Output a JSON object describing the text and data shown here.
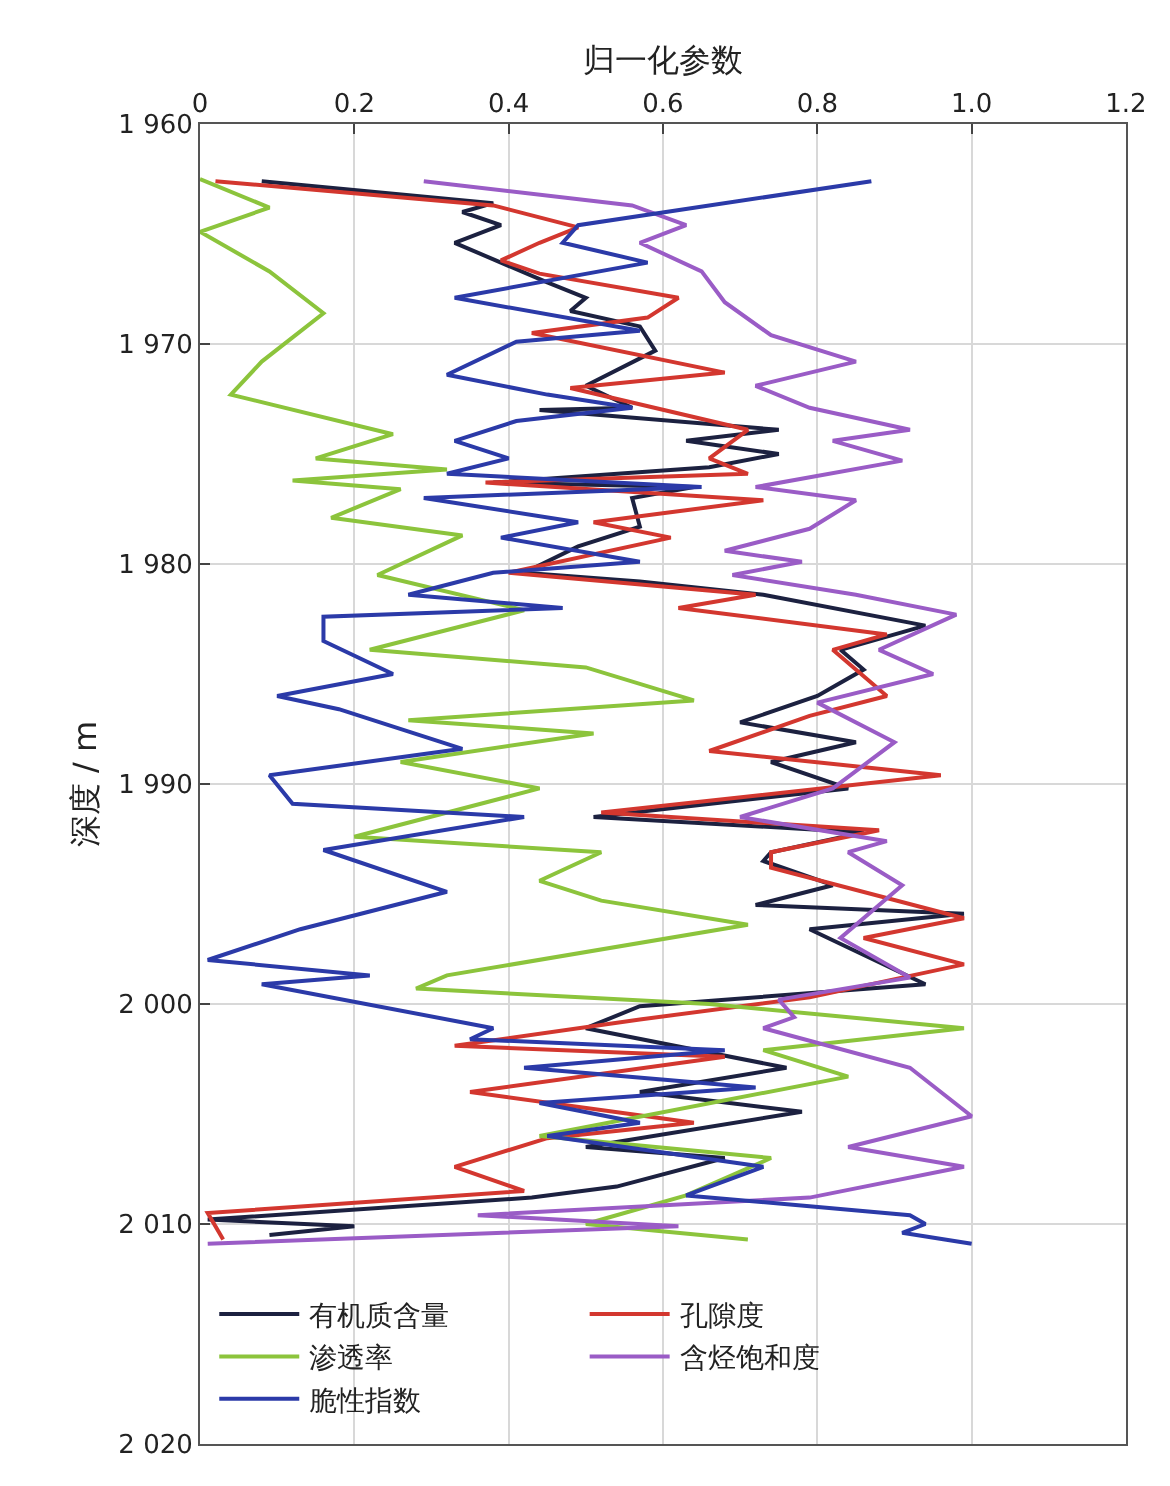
{
  "chart_data": {
    "type": "line",
    "orientation": "horizontal",
    "xlabel": "归一化参数",
    "ylabel": "深度 / m",
    "xlim": [
      0,
      1.2
    ],
    "xticks": [
      0,
      0.2,
      0.4,
      0.6,
      0.8,
      {
        "value": 1,
        "label": "1.0"
      },
      1.2
    ],
    "ylim": [
      2020,
      1960
    ],
    "yticks": [
      {
        "value": 1960,
        "label": "1 960"
      },
      {
        "value": 1970,
        "label": "1 970"
      },
      {
        "value": 1980,
        "label": "1 980"
      },
      {
        "value": 1990,
        "label": "1 990"
      },
      {
        "value": 2000,
        "label": "2 000"
      },
      {
        "value": 2010,
        "label": "2 010"
      },
      {
        "value": 2020,
        "label": "2 020"
      }
    ],
    "grid": true,
    "legend": "bottom left",
    "marker": "none",
    "line_style": "solid",
    "series": [
      {
        "name": "有机质含量",
        "color": "#1c2140",
        "x": [
          1962.6,
          1963.6,
          1964.0,
          1964.6,
          1965.4,
          1967.2,
          1967.9,
          1968.5,
          1969.2,
          1970.3,
          1971.9,
          1972.9,
          1973.0,
          1973.9,
          1974.4,
          1975.0,
          1975.6,
          1976.3,
          1976.5,
          1977.0,
          1978.3,
          1979.2,
          1980.4,
          1980.8,
          1981.4,
          1982.8,
          1983.9,
          1984.8,
          1986.0,
          1987.2,
          1988.1,
          1989.0,
          1990.2,
          1991.5,
          1992.2,
          1993.1,
          1993.5,
          1994.6,
          1995.5,
          1995.9,
          1996.6,
          1999.1,
          2000.1,
          2001.1,
          2002.9,
          2004.0,
          2004.9,
          2006.5,
          2007.0,
          2008.3,
          2008.8,
          2009.8,
          2010.1,
          2010.5
        ],
        "values": [
          0.08,
          0.38,
          0.34,
          0.39,
          0.33,
          0.45,
          0.5,
          0.48,
          0.57,
          0.59,
          0.5,
          0.56,
          0.44,
          0.75,
          0.63,
          0.75,
          0.66,
          0.38,
          0.64,
          0.56,
          0.57,
          0.49,
          0.42,
          0.57,
          0.73,
          0.94,
          0.83,
          0.86,
          0.8,
          0.7,
          0.85,
          0.74,
          0.84,
          0.51,
          0.86,
          0.74,
          0.73,
          0.82,
          0.72,
          0.99,
          0.79,
          0.94,
          0.57,
          0.5,
          0.76,
          0.57,
          0.78,
          0.5,
          0.68,
          0.54,
          0.43,
          0.01,
          0.2,
          0.09
        ]
      },
      {
        "name": "孔隙度",
        "color": "#d3372f",
        "x": [
          1962.6,
          1963.7,
          1964.7,
          1965.4,
          1966.2,
          1966.8,
          1967.9,
          1968.8,
          1969.5,
          1971.3,
          1972.0,
          1973.9,
          1975.2,
          1975.9,
          1976.3,
          1977.1,
          1978.1,
          1978.8,
          1980.4,
          1981.4,
          1982.0,
          1983.2,
          1983.9,
          1986.0,
          1986.9,
          1988.5,
          1989.6,
          1991.3,
          1992.1,
          1993.1,
          1993.8,
          1996.1,
          1997.0,
          1998.2,
          1999.7,
          2000.7,
          2001.9,
          2002.4,
          2004.0,
          2005.4,
          2006.1,
          2007.4,
          2008.5,
          2009.5,
          2010.7
        ],
        "values": [
          0.02,
          0.38,
          0.49,
          0.44,
          0.39,
          0.44,
          0.62,
          0.58,
          0.43,
          0.68,
          0.48,
          0.71,
          0.66,
          0.71,
          0.37,
          0.73,
          0.51,
          0.61,
          0.4,
          0.72,
          0.62,
          0.89,
          0.82,
          0.89,
          0.79,
          0.66,
          0.96,
          0.52,
          0.88,
          0.74,
          0.74,
          0.99,
          0.86,
          0.99,
          0.79,
          0.57,
          0.33,
          0.68,
          0.35,
          0.64,
          0.45,
          0.33,
          0.42,
          0.01,
          0.03
        ]
      },
      {
        "name": "渗透率",
        "color": "#8cc43c",
        "x": [
          1962.5,
          1963.8,
          1964.9,
          1966.7,
          1968.6,
          1970.8,
          1972.3,
          1974.1,
          1975.2,
          1975.7,
          1976.2,
          1976.6,
          1977.9,
          1978.7,
          1980.5,
          1982.1,
          1983.9,
          1984.7,
          1986.2,
          1987.1,
          1987.7,
          1989.0,
          1990.2,
          1992.4,
          1993.1,
          1994.4,
          1995.3,
          1996.4,
          1998.7,
          1999.3,
          2000.0,
          2001.1,
          2002.1,
          2003.3,
          2006.0,
          2007.0,
          2008.7,
          2010.0,
          2010.7
        ],
        "values": [
          0.0,
          0.09,
          0.0,
          0.09,
          0.16,
          0.08,
          0.04,
          0.25,
          0.15,
          0.32,
          0.12,
          0.26,
          0.17,
          0.34,
          0.23,
          0.42,
          0.22,
          0.5,
          0.64,
          0.27,
          0.51,
          0.26,
          0.44,
          0.2,
          0.52,
          0.44,
          0.52,
          0.71,
          0.32,
          0.28,
          0.66,
          0.99,
          0.73,
          0.84,
          0.44,
          0.74,
          0.63,
          0.5,
          0.71
        ]
      },
      {
        "name": "含烃饱和度",
        "color": "#9a5cc6",
        "x": [
          1962.6,
          1963.7,
          1964.6,
          1965.4,
          1966.7,
          1968.1,
          1969.6,
          1970.8,
          1971.9,
          1972.9,
          1973.9,
          1974.4,
          1975.3,
          1976.5,
          1977.1,
          1978.4,
          1979.4,
          1979.9,
          1980.5,
          1981.4,
          1982.3,
          1983.9,
          1985.0,
          1986.3,
          1988.1,
          1990.2,
          1991.5,
          1992.6,
          1993.1,
          1994.6,
          1997.0,
          1998.8,
          1999.8,
          2000.6,
          2001.1,
          2002.9,
          2005.1,
          2006.5,
          2007.4,
          2008.8,
          2009.6,
          2010.1,
          2010.9
        ],
        "values": [
          0.29,
          0.56,
          0.63,
          0.57,
          0.65,
          0.68,
          0.74,
          0.85,
          0.72,
          0.79,
          0.92,
          0.82,
          0.91,
          0.72,
          0.85,
          0.79,
          0.68,
          0.78,
          0.69,
          0.85,
          0.98,
          0.88,
          0.95,
          0.8,
          0.9,
          0.82,
          0.7,
          0.89,
          0.84,
          0.91,
          0.83,
          0.92,
          0.75,
          0.77,
          0.73,
          0.92,
          1.0,
          0.84,
          0.99,
          0.79,
          0.36,
          0.62,
          0.01
        ]
      },
      {
        "name": "脆性指数",
        "color": "#2b3aa8",
        "x": [
          1962.6,
          1964.6,
          1965.4,
          1966.3,
          1967.9,
          1969.4,
          1969.9,
          1971.4,
          1972.3,
          1972.9,
          1973.5,
          1974.4,
          1975.2,
          1975.9,
          1976.5,
          1977.0,
          1978.1,
          1978.8,
          1979.9,
          1980.4,
          1981.4,
          1982.0,
          1982.4,
          1983.5,
          1985.0,
          1986.0,
          1986.6,
          1988.4,
          1989.6,
          1990.9,
          1991.5,
          1993.0,
          1994.9,
          1996.6,
          1998.0,
          1998.7,
          1999.1,
          2001.1,
          2001.6,
          2002.1,
          2002.9,
          2003.8,
          2004.5,
          2005.4,
          2006.0,
          2007.4,
          2008.7,
          2009.6,
          2010.0,
          2010.4,
          2010.9
        ],
        "values": [
          0.87,
          0.49,
          0.47,
          0.58,
          0.33,
          0.57,
          0.41,
          0.32,
          0.45,
          0.56,
          0.41,
          0.33,
          0.4,
          0.32,
          0.65,
          0.29,
          0.49,
          0.39,
          0.57,
          0.38,
          0.27,
          0.47,
          0.16,
          0.16,
          0.25,
          0.1,
          0.18,
          0.34,
          0.09,
          0.12,
          0.42,
          0.16,
          0.32,
          0.13,
          0.01,
          0.22,
          0.08,
          0.38,
          0.35,
          0.68,
          0.42,
          0.72,
          0.44,
          0.57,
          0.45,
          0.73,
          0.63,
          0.92,
          0.94,
          0.91,
          1.0
        ]
      }
    ]
  }
}
